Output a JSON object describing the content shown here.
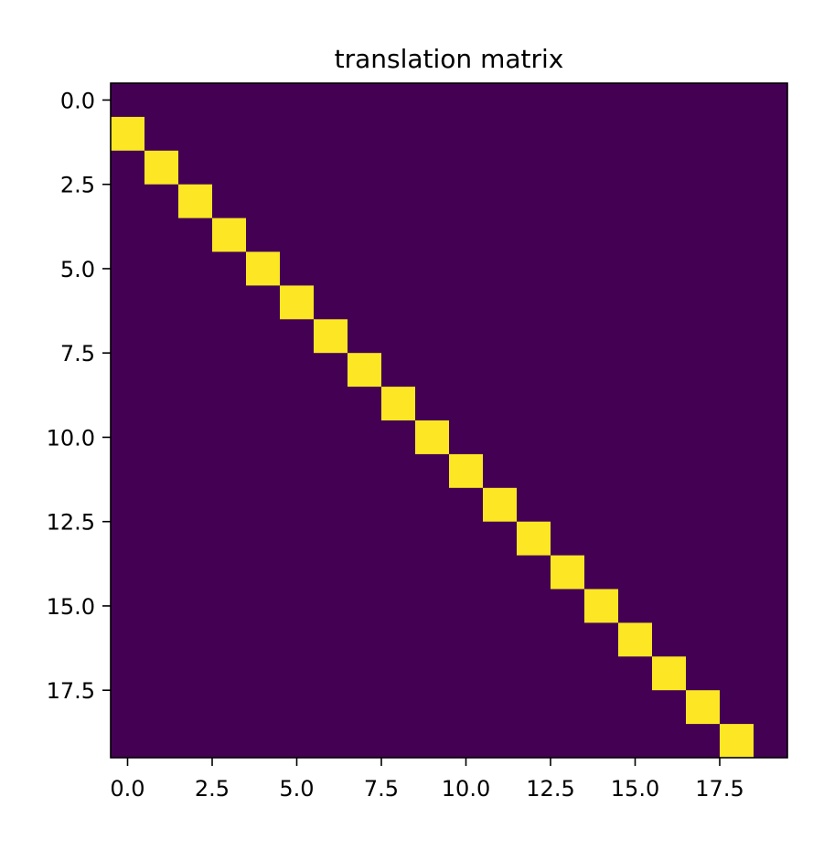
{
  "chart_data": {
    "type": "heatmap",
    "title": "translation matrix",
    "xlabel": "",
    "ylabel": "",
    "rows": 20,
    "cols": 20,
    "xlim": [
      -0.5,
      19.5
    ],
    "ylim": [
      19.5,
      -0.5
    ],
    "y_axis_inverted": true,
    "grid": false,
    "colormap": "viridis",
    "background_value": 0,
    "background_color": "#440154",
    "highlight_value": 1,
    "highlight_color": "#fde725",
    "nonzero_cells": [
      {
        "row": 1,
        "col": 0,
        "value": 1
      },
      {
        "row": 2,
        "col": 1,
        "value": 1
      },
      {
        "row": 3,
        "col": 2,
        "value": 1
      },
      {
        "row": 4,
        "col": 3,
        "value": 1
      },
      {
        "row": 5,
        "col": 4,
        "value": 1
      },
      {
        "row": 6,
        "col": 5,
        "value": 1
      },
      {
        "row": 7,
        "col": 6,
        "value": 1
      },
      {
        "row": 8,
        "col": 7,
        "value": 1
      },
      {
        "row": 9,
        "col": 8,
        "value": 1
      },
      {
        "row": 10,
        "col": 9,
        "value": 1
      },
      {
        "row": 11,
        "col": 10,
        "value": 1
      },
      {
        "row": 12,
        "col": 11,
        "value": 1
      },
      {
        "row": 13,
        "col": 12,
        "value": 1
      },
      {
        "row": 14,
        "col": 13,
        "value": 1
      },
      {
        "row": 15,
        "col": 14,
        "value": 1
      },
      {
        "row": 16,
        "col": 15,
        "value": 1
      },
      {
        "row": 17,
        "col": 16,
        "value": 1
      },
      {
        "row": 18,
        "col": 17,
        "value": 1
      },
      {
        "row": 19,
        "col": 18,
        "value": 1
      }
    ],
    "x_ticks": [
      {
        "value": 0.0,
        "label": "0.0"
      },
      {
        "value": 2.5,
        "label": "2.5"
      },
      {
        "value": 5.0,
        "label": "5.0"
      },
      {
        "value": 7.5,
        "label": "7.5"
      },
      {
        "value": 10.0,
        "label": "10.0"
      },
      {
        "value": 12.5,
        "label": "12.5"
      },
      {
        "value": 15.0,
        "label": "15.0"
      },
      {
        "value": 17.5,
        "label": "17.5"
      }
    ],
    "y_ticks": [
      {
        "value": 0.0,
        "label": "0.0"
      },
      {
        "value": 2.5,
        "label": "2.5"
      },
      {
        "value": 5.0,
        "label": "5.0"
      },
      {
        "value": 7.5,
        "label": "7.5"
      },
      {
        "value": 10.0,
        "label": "10.0"
      },
      {
        "value": 12.5,
        "label": "12.5"
      },
      {
        "value": 15.0,
        "label": "15.0"
      },
      {
        "value": 17.5,
        "label": "17.5"
      }
    ]
  }
}
